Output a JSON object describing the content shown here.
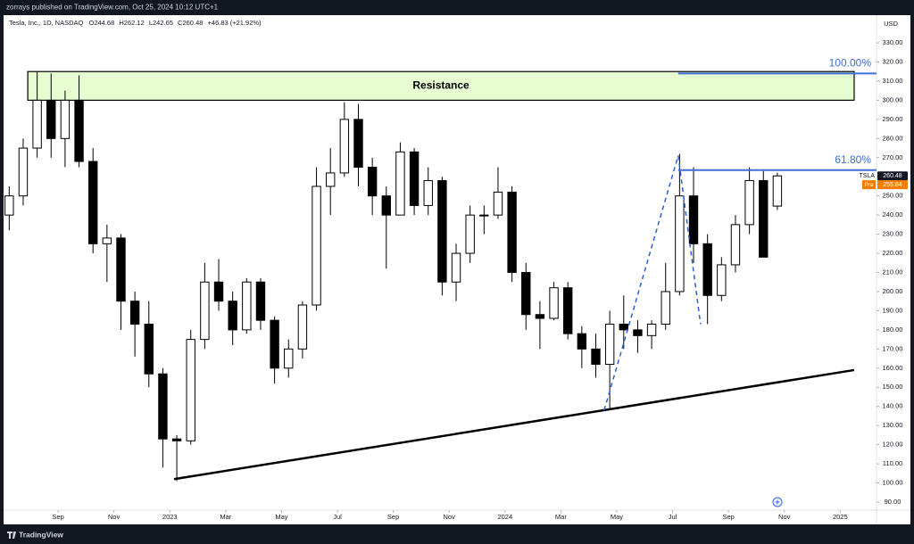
{
  "publisher": "zorrays published on TradingView.com, Oct 25, 2024 10:12 UTC+1",
  "footer": "TradingView",
  "chart_data": {
    "type": "candlestick",
    "title": "Tesla, Inc., 1D, NASDAQ",
    "ohlc_labels": [
      "O",
      "H",
      "L",
      "C"
    ],
    "change_text": "+46.83 (+21.92%)",
    "currency": "USD",
    "color": "#000000",
    "categories": [
      null,
      null,
      null,
      null,
      null,
      null,
      null,
      null,
      null,
      null,
      null,
      null,
      null,
      null,
      null,
      null,
      null,
      null,
      null,
      null,
      null,
      null,
      null,
      null,
      null,
      null,
      null,
      null,
      null,
      null,
      null,
      null,
      null,
      null,
      null,
      null,
      null,
      null,
      null,
      null,
      null,
      null,
      null,
      null,
      null,
      null,
      null,
      null,
      null,
      null,
      null,
      null,
      null,
      null,
      null,
      null
    ],
    "series": [
      {
        "name": "TSLA",
        "open": [
          240,
          250,
          275,
          300,
          280,
          300,
          268,
          225,
          228,
          195,
          183,
          157,
          123,
          122,
          175,
          205,
          195,
          180,
          205,
          185,
          160,
          170,
          193,
          255,
          262,
          290,
          265,
          250,
          240,
          273,
          245,
          258,
          205,
          220,
          240,
          240,
          252,
          210,
          188,
          186,
          202,
          178,
          170,
          162,
          183,
          180,
          177,
          183,
          200,
          250,
          225,
          198,
          214,
          235,
          258,
          244.68
        ],
        "high": [
          255,
          280,
          315,
          314,
          305,
          313,
          275,
          235,
          230,
          200,
          195,
          160,
          125,
          180,
          215,
          217,
          200,
          207,
          207,
          187,
          175,
          195,
          265,
          275,
          299,
          298,
          270,
          255,
          278,
          275,
          265,
          260,
          225,
          245,
          245,
          265,
          255,
          215,
          195,
          205,
          205,
          182,
          178,
          190,
          198,
          185,
          185,
          215,
          272,
          265,
          230,
          218,
          240,
          265,
          263,
          262.12
        ],
        "low": [
          232,
          245,
          270,
          270,
          265,
          265,
          220,
          205,
          180,
          166,
          150,
          108,
          101,
          120,
          170,
          190,
          172,
          178,
          180,
          152,
          155,
          165,
          190,
          240,
          260,
          255,
          240,
          212,
          240,
          240,
          240,
          198,
          195,
          215,
          230,
          238,
          205,
          180,
          170,
          185,
          175,
          160,
          155,
          138,
          170,
          168,
          170,
          180,
          198,
          215,
          183,
          195,
          210,
          230,
          220,
          242.65
        ],
        "close": [
          250,
          275,
          300,
          280,
          300,
          268,
          225,
          228,
          195,
          183,
          157,
          123,
          122,
          175,
          205,
          195,
          180,
          205,
          185,
          160,
          170,
          193,
          255,
          262,
          290,
          265,
          250,
          240,
          273,
          245,
          258,
          205,
          220,
          240,
          240,
          252,
          210,
          188,
          186,
          202,
          178,
          170,
          162,
          183,
          180,
          177,
          183,
          200,
          250,
          225,
          198,
          214,
          235,
          258,
          218,
          260.48
        ]
      }
    ],
    "pre_market": {
      "label": "Pre",
      "value": 255.84,
      "color": "#f57c00"
    },
    "xlim": [
      -0.34,
      62.1
    ],
    "xticks": [
      {
        "value": 3.5,
        "label": "Sep"
      },
      {
        "value": 7.5,
        "label": "Nov"
      },
      {
        "value": 11.5,
        "label": "2023"
      },
      {
        "value": 15.5,
        "label": "Mar"
      },
      {
        "value": 19.5,
        "label": "May"
      },
      {
        "value": 23.5,
        "label": "Jul"
      },
      {
        "value": 27.5,
        "label": "Sep"
      },
      {
        "value": 31.5,
        "label": "Nov"
      },
      {
        "value": 35.5,
        "label": "2024"
      },
      {
        "value": 39.5,
        "label": "Mar"
      },
      {
        "value": 43.5,
        "label": "May"
      },
      {
        "value": 47.5,
        "label": "Jul"
      },
      {
        "value": 51.5,
        "label": "Sep"
      },
      {
        "value": 55.5,
        "label": "Nov"
      },
      {
        "value": 59.5,
        "label": "2025"
      }
    ],
    "ylim": [
      84.4,
      345.4
    ],
    "yticks": [
      {
        "value": 90,
        "label": "90.00"
      },
      {
        "value": 100,
        "label": "100.00"
      },
      {
        "value": 110,
        "label": "110.00"
      },
      {
        "value": 120,
        "label": "120.00"
      },
      {
        "value": 130,
        "label": "130.00"
      },
      {
        "value": 140,
        "label": "140.00"
      },
      {
        "value": 150,
        "label": "150.00"
      },
      {
        "value": 160,
        "label": "160.00"
      },
      {
        "value": 170,
        "label": "170.00"
      },
      {
        "value": 180,
        "label": "180.00"
      },
      {
        "value": 190,
        "label": "190.00"
      },
      {
        "value": 200,
        "label": "200.00"
      },
      {
        "value": 210,
        "label": "210.00"
      },
      {
        "value": 220,
        "label": "220.00"
      },
      {
        "value": 230,
        "label": "230.00"
      },
      {
        "value": 240,
        "label": "240.00"
      },
      {
        "value": 250,
        "label": "250.00"
      },
      {
        "value": 260,
        "label": "260.00"
      },
      {
        "value": 270,
        "label": "270.00"
      },
      {
        "value": 280,
        "label": "280.00"
      },
      {
        "value": 290,
        "label": "290.00"
      },
      {
        "value": 300,
        "label": "300.00"
      },
      {
        "value": 310,
        "label": "310.00"
      },
      {
        "value": 320,
        "label": "320.00"
      },
      {
        "value": 330,
        "label": "330.00"
      }
    ],
    "grid": false,
    "resistance": {
      "label": "Resistance",
      "x": [
        1.33,
        60.5
      ],
      "y": [
        300,
        315
      ],
      "color": "#e6fcd1"
    },
    "fib": {
      "levels": [
        100,
        61.8
      ],
      "value_labels": [
        "100.00%",
        "61.80%"
      ],
      "prices": [
        314,
        263.5
      ],
      "start": 47.9,
      "color": "#3f6fd8"
    },
    "zigzag": {
      "x": [
        42.6,
        47.9,
        49.5
      ],
      "y": [
        138,
        271,
        183
      ],
      "color": "#2e5fd6"
    },
    "trendline": {
      "x": [
        11.8,
        60.5
      ],
      "y": [
        102,
        159
      ],
      "color": "#000000"
    }
  }
}
